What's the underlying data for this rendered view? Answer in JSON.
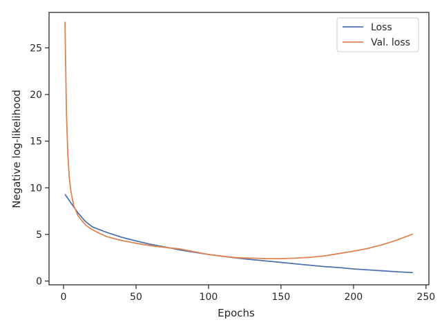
{
  "chart_data": {
    "type": "line",
    "xlabel": "Epochs",
    "ylabel": "Negative log-likelihood",
    "xlim": [
      -10,
      252
    ],
    "ylim": [
      -0.4,
      28.8
    ],
    "xticks": [
      0,
      50,
      100,
      150,
      200,
      250
    ],
    "yticks": [
      0,
      5,
      10,
      15,
      20,
      25
    ],
    "grid": false,
    "legend": "top-right",
    "series": [
      {
        "name": "Loss",
        "color": "#4c72b0",
        "x": [
          1,
          5,
          10,
          15,
          20,
          30,
          40,
          50,
          60,
          70,
          80,
          90,
          100,
          110,
          120,
          130,
          140,
          150,
          160,
          170,
          180,
          190,
          200,
          210,
          220,
          230,
          241
        ],
        "y": [
          9.3,
          8.4,
          7.3,
          6.4,
          5.8,
          5.2,
          4.7,
          4.3,
          3.95,
          3.65,
          3.35,
          3.1,
          2.85,
          2.65,
          2.45,
          2.3,
          2.15,
          2.0,
          1.85,
          1.7,
          1.55,
          1.45,
          1.3,
          1.2,
          1.1,
          1.0,
          0.9
        ]
      },
      {
        "name": "Val. loss",
        "color": "#dd8452",
        "x": [
          1,
          2,
          3,
          4,
          5,
          7,
          10,
          13,
          16,
          20,
          25,
          30,
          40,
          50,
          60,
          70,
          80,
          90,
          100,
          110,
          120,
          130,
          140,
          150,
          160,
          170,
          180,
          190,
          200,
          210,
          220,
          230,
          241
        ],
        "y": [
          27.8,
          18.0,
          13.5,
          11.0,
          9.7,
          8.1,
          7.0,
          6.4,
          5.9,
          5.5,
          5.1,
          4.75,
          4.35,
          4.05,
          3.8,
          3.6,
          3.45,
          3.15,
          2.85,
          2.65,
          2.5,
          2.45,
          2.4,
          2.4,
          2.45,
          2.55,
          2.7,
          2.95,
          3.2,
          3.5,
          3.9,
          4.4,
          5.05
        ]
      }
    ]
  }
}
